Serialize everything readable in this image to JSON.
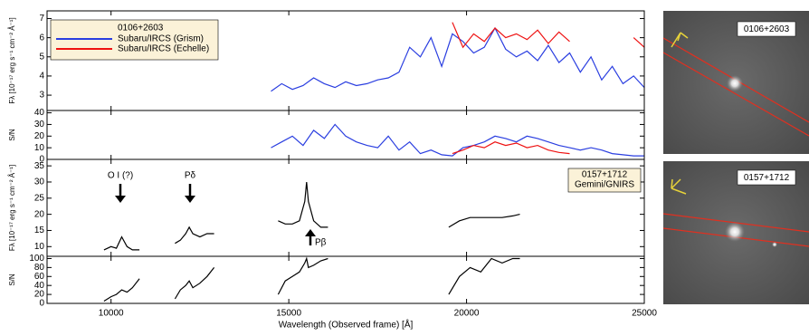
{
  "chart_data": [
    {
      "type": "line",
      "ylabel": "Fλ [10⁻¹⁷ erg s⁻¹ cm⁻² Å⁻¹]",
      "legend_title": "0106+2603",
      "legend": "upper left",
      "xlim": [
        8200,
        25000
      ],
      "xticks": [
        10000,
        15000,
        20000,
        25000
      ],
      "ylim": [
        2.2,
        7.4
      ],
      "yticks": [
        3,
        4,
        5,
        6,
        7
      ],
      "x": [
        14500,
        14800,
        15100,
        15400,
        15700,
        16000,
        16300,
        16600,
        16900,
        17200,
        17500,
        17800,
        18100,
        18400,
        18700,
        19000,
        19300,
        19600,
        19900,
        20200,
        20500,
        20800,
        21100,
        21400,
        21700,
        22000,
        22300,
        22600,
        22900,
        23200,
        23500,
        23800,
        24100,
        24400,
        24700,
        25000
      ],
      "series": [
        {
          "name": "Subaru/IRCS (Grism)",
          "color": "#2a3ee0",
          "values": [
            3.2,
            3.6,
            3.3,
            3.5,
            3.9,
            3.6,
            3.4,
            3.7,
            3.5,
            3.6,
            3.8,
            3.9,
            4.2,
            5.5,
            5.0,
            6.0,
            4.5,
            6.2,
            5.8,
            5.2,
            5.5,
            6.5,
            5.4,
            5.0,
            5.3,
            4.8,
            5.6,
            4.7,
            5.2,
            4.2,
            5.0,
            3.8,
            4.5,
            3.6,
            4.0,
            3.4
          ]
        },
        {
          "name": "Subaru/IRCS (Echelle)",
          "color": "#ee1111",
          "values": [
            null,
            null,
            null,
            null,
            null,
            null,
            null,
            null,
            null,
            null,
            null,
            null,
            null,
            null,
            null,
            null,
            null,
            6.8,
            5.5,
            6.2,
            5.8,
            6.5,
            6.0,
            6.2,
            5.9,
            6.4,
            5.7,
            6.3,
            5.8,
            null,
            null,
            null,
            null,
            null,
            6.0,
            5.5
          ]
        }
      ]
    },
    {
      "type": "line",
      "ylabel": "S/N",
      "xlim": [
        8200,
        25000
      ],
      "xticks": [
        10000,
        15000,
        20000,
        25000
      ],
      "ylim": [
        0,
        42
      ],
      "yticks": [
        0,
        10,
        20,
        30,
        40
      ],
      "x": [
        14500,
        14800,
        15100,
        15400,
        15700,
        16000,
        16300,
        16600,
        16900,
        17200,
        17500,
        17800,
        18100,
        18400,
        18700,
        19000,
        19300,
        19600,
        19900,
        20200,
        20500,
        20800,
        21100,
        21400,
        21700,
        22000,
        22300,
        22600,
        22900,
        23200,
        23500,
        23800,
        24100,
        24400,
        24700,
        25000
      ],
      "series": [
        {
          "color": "#2a3ee0",
          "values": [
            10,
            15,
            20,
            12,
            25,
            18,
            30,
            20,
            15,
            12,
            10,
            20,
            8,
            15,
            5,
            8,
            4,
            3,
            10,
            12,
            15,
            20,
            18,
            15,
            20,
            18,
            15,
            12,
            10,
            8,
            10,
            8,
            5,
            4,
            3,
            3
          ]
        },
        {
          "color": "#ee1111",
          "values": [
            null,
            null,
            null,
            null,
            null,
            null,
            null,
            null,
            null,
            null,
            null,
            null,
            null,
            null,
            null,
            null,
            null,
            5,
            8,
            12,
            10,
            15,
            12,
            14,
            10,
            12,
            8,
            6,
            5,
            null,
            null,
            null,
            null,
            null,
            null,
            null
          ]
        }
      ]
    },
    {
      "type": "line",
      "ylabel": "Fλ [10⁻¹⁷ erg s⁻¹ cm⁻² Å⁻¹]",
      "box_text": [
        "0157+1712",
        "Gemini/GNIRS"
      ],
      "annotations": [
        "O I (?)",
        "Pδ",
        "Pβ"
      ],
      "xlim": [
        8200,
        25000
      ],
      "xticks": [
        10000,
        15000,
        20000,
        25000
      ],
      "ylim": [
        7,
        37
      ],
      "yticks": [
        10,
        15,
        20,
        25,
        30,
        35
      ],
      "x": [
        9800,
        10000,
        10150,
        10300,
        10450,
        10600,
        10800,
        11200,
        11800,
        11950,
        12100,
        12200,
        12300,
        12500,
        12700,
        12900,
        13800,
        14700,
        14900,
        15100,
        15300,
        15450,
        15500,
        15550,
        15700,
        15900,
        16100,
        18000,
        19500,
        19800,
        20100,
        20400,
        20700,
        21000,
        21300,
        21500
      ],
      "series": [
        {
          "color": "#000000",
          "values": [
            9,
            10,
            9.5,
            13,
            10,
            9,
            9,
            null,
            11,
            12,
            14,
            16,
            14,
            13,
            14,
            14,
            null,
            18,
            17,
            17,
            18,
            24,
            30,
            24,
            18,
            16,
            16,
            null,
            16,
            18,
            19,
            19,
            19,
            19,
            19.5,
            20
          ]
        }
      ]
    },
    {
      "type": "line",
      "ylabel": "S/N",
      "xlabel": "Wavelength (Observed frame) [Å]",
      "xlim": [
        8200,
        25000
      ],
      "xticks": [
        10000,
        15000,
        20000,
        25000
      ],
      "ylim": [
        0,
        105
      ],
      "yticks": [
        0,
        20,
        40,
        60,
        80,
        100
      ],
      "x": [
        9800,
        10000,
        10150,
        10300,
        10450,
        10600,
        10800,
        11200,
        11800,
        11950,
        12100,
        12200,
        12300,
        12500,
        12700,
        12900,
        13800,
        14700,
        14900,
        15100,
        15300,
        15450,
        15500,
        15550,
        15700,
        15900,
        16100,
        18000,
        19500,
        19800,
        20100,
        20400,
        20700,
        21000,
        21300,
        21500
      ],
      "series": [
        {
          "color": "#000000",
          "values": [
            5,
            15,
            20,
            30,
            25,
            35,
            55,
            null,
            10,
            30,
            40,
            50,
            35,
            45,
            60,
            80,
            null,
            20,
            50,
            60,
            70,
            90,
            100,
            80,
            85,
            95,
            100,
            null,
            20,
            60,
            80,
            70,
            100,
            90,
            100,
            100
          ]
        }
      ]
    }
  ],
  "images": [
    {
      "label": "0106+2603"
    },
    {
      "label": "0157+1712"
    }
  ]
}
